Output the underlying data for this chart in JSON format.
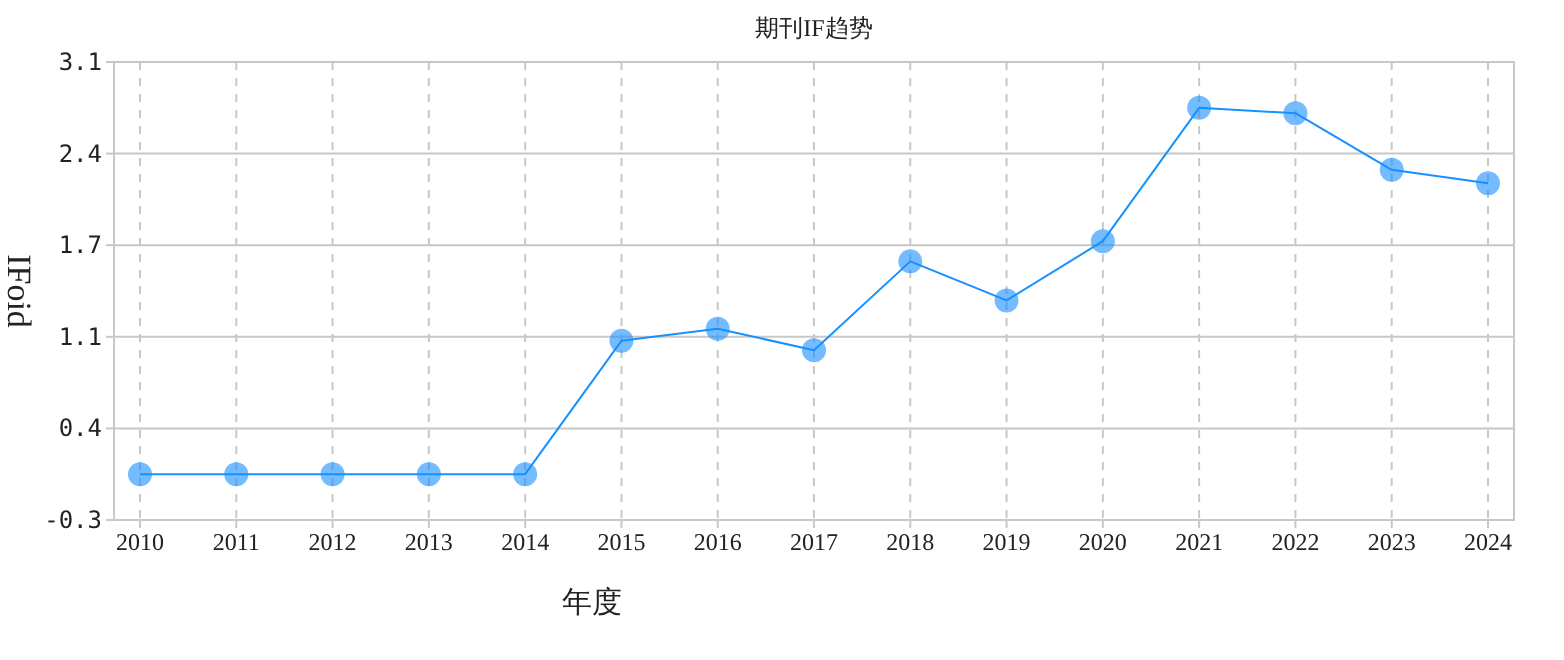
{
  "chart_data": {
    "type": "line",
    "title": "期刊IF趋势",
    "xlabel": "年度",
    "ylabel": "IFoid",
    "categories": [
      "2010",
      "2011",
      "2012",
      "2013",
      "2014",
      "2015",
      "2016",
      "2017",
      "2018",
      "2019",
      "2020",
      "2021",
      "2022",
      "2023",
      "2024"
    ],
    "series": [
      {
        "color": "#1890ff",
        "values": [
          0.04,
          0.04,
          0.04,
          0.04,
          0.04,
          1.03,
          1.12,
          0.96,
          1.62,
          1.33,
          1.77,
          2.76,
          2.72,
          2.3,
          2.2
        ]
      }
    ],
    "ylim": [
      -0.3,
      3.1
    ],
    "yticks": [
      -0.3,
      {
        "value": 0.38,
        "label": "0.4"
      },
      {
        "value": 1.06,
        "label": "1.1"
      },
      {
        "value": 1.74,
        "label": "1.7"
      },
      {
        "value": 2.42,
        "label": "2.4"
      },
      3.1
    ],
    "grid": true,
    "marker": "circle",
    "line_style": "solid"
  }
}
